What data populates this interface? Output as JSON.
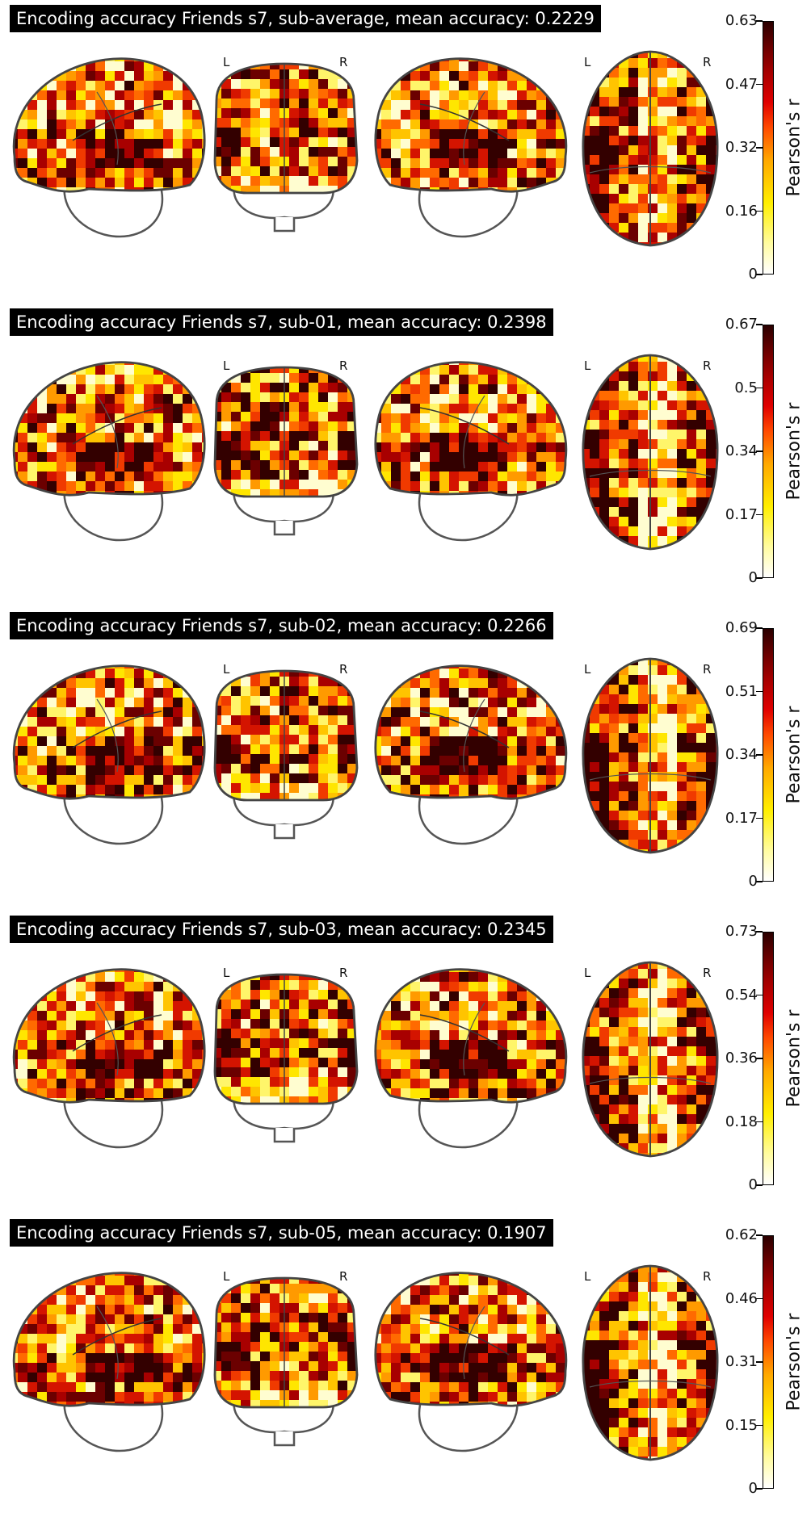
{
  "colorbar_label": "Pearson's r",
  "lr_left": "L",
  "lr_right": "R",
  "panels": [
    {
      "title": "Encoding accuracy Friends s7, sub-average, mean accuracy: 0.2229",
      "ticks": [
        "0.63",
        "0.47",
        "0.32",
        "0.16",
        "0"
      ]
    },
    {
      "title": "Encoding accuracy Friends s7, sub-01, mean accuracy: 0.2398",
      "ticks": [
        "0.67",
        "0.5",
        "0.34",
        "0.17",
        "0"
      ]
    },
    {
      "title": "Encoding accuracy Friends s7, sub-02, mean accuracy: 0.2266",
      "ticks": [
        "0.69",
        "0.51",
        "0.34",
        "0.17",
        "0"
      ]
    },
    {
      "title": "Encoding accuracy Friends s7, sub-03, mean accuracy: 0.2345",
      "ticks": [
        "0.73",
        "0.54",
        "0.36",
        "0.18",
        "0"
      ]
    },
    {
      "title": "Encoding accuracy Friends s7, sub-05, mean accuracy: 0.1907",
      "ticks": [
        "0.62",
        "0.46",
        "0.31",
        "0.15",
        "0"
      ]
    }
  ],
  "colors": {
    "low": "#fffca0",
    "mid": "#ff6a00",
    "high": "#3a0000"
  }
}
